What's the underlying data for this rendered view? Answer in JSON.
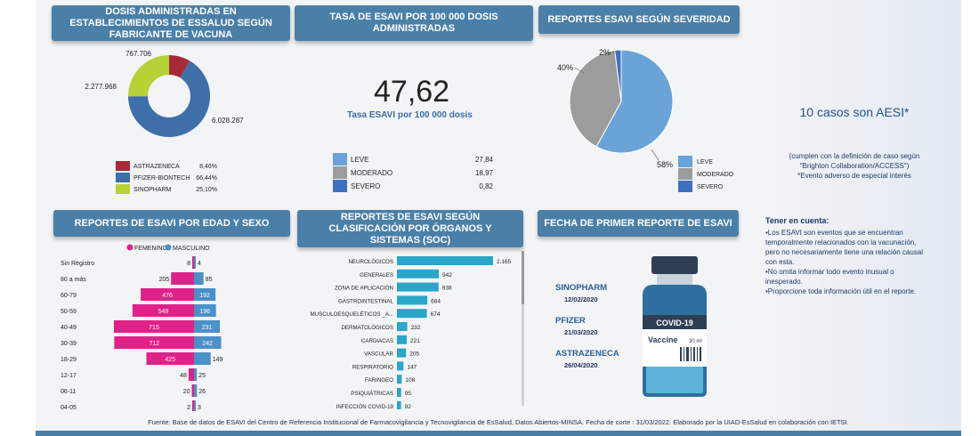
{
  "panels": {
    "fabricante": {
      "title": "DOSIS ADMINISTRADAS EN ESTABLECIMIENTOS DE ESSALUD SEGÚN FABRICANTE DE  VACUNA"
    },
    "tasa": {
      "title": "TASA DE ESAVI POR 100 000 DOSIS ADMINISTRADAS",
      "value": "47,62",
      "caption": "Tasa ESAVI por 100 000 dosis"
    },
    "severidad": {
      "title": "REPORTES ESAVI SEGÚN SEVERIDAD"
    },
    "edad_sexo": {
      "title": "REPORTES DE ESAVI POR EDAD Y SEXO"
    },
    "soc": {
      "title": "REPORTES DE ESAVI SEGÚN CLASIFICACIÓN POR ÓRGANOS Y SISTEMAS (SOC)"
    },
    "fecha": {
      "title": "FECHA DE PRIMER REPORTE DE ESAVI"
    }
  },
  "aesi": {
    "headline": "10 casos son AESI*",
    "line1": "(cumplen con la definición de caso según",
    "line2": "\"Brighton Collaboration/ACCESS\")",
    "line3": "*Evento adverso de especial interés"
  },
  "tener_cuenta": {
    "title": "Tener en cuenta:",
    "lines": [
      "•Los ESAVI son eventos que se encuentran",
      "temporalmente relacionados con la vacunación,",
      "pero no necesariamente tiene una relación causal",
      "con esta.",
      "•No omita informar todo evento inusual o",
      "inesperado.",
      "•Proporcione toda información útil en el reporte."
    ]
  },
  "fechas": [
    {
      "name": "SINOPHARM",
      "date": "12/02/2020"
    },
    {
      "name": "PFIZER",
      "date": "21/03/2020"
    },
    {
      "name": "ASTRAZENECA",
      "date": "26/04/2020"
    }
  ],
  "vial": {
    "label": "COVID-19",
    "sub": "Vaccine",
    "volume": "30 ml"
  },
  "footer": "Fuente: Base de datos de ESAVI del Centro de Referencia Institucional de Farmacovigilancia y Tecnovigilancia de EsSalud, Datos Abiertos-MINSA. Fecha de corte : 31/03/2022. Elaborado por la UIAD-EsSalud en colaboración con IETSI.",
  "colors": {
    "header": "#4a7fa8",
    "astrazeneca": "#a52a3a",
    "pfizer": "#3e6fa8",
    "sinopharm": "#b5d334",
    "leve": "#6aa3d8",
    "moderado": "#9c9c9c",
    "severo": "#3f6fbf",
    "femenino": "#e0218a",
    "masculino": "#4a90c9",
    "soc": "#2aa6c9"
  },
  "chart_data": [
    {
      "type": "pie",
      "title": "DOSIS ADMINISTRADAS EN ESTABLECIMIENTOS DE ESSALUD SEGÚN FABRICANTE DE  VACUNA",
      "slices": [
        {
          "name": "ASTRAZENECA",
          "value": 767706,
          "label": "767.706",
          "pct": "8,46%"
        },
        {
          "name": "PFIZER-BIONTECH",
          "value": 6028287,
          "label": "6.028.287",
          "pct": "66,44%"
        },
        {
          "name": "SINOPHARM",
          "value": 2277968,
          "label": "2.277.968",
          "pct": "25,10%"
        }
      ]
    },
    {
      "type": "table",
      "title": "TASA DE ESAVI POR 100 000 DOSIS ADMINISTRADAS",
      "rows": [
        {
          "name": "LEVE",
          "value": "27,84"
        },
        {
          "name": "MODERADO",
          "value": "18,97"
        },
        {
          "name": "SEVERO",
          "value": "0,82"
        }
      ]
    },
    {
      "type": "pie",
      "title": "REPORTES ESAVI SEGÚN SEVERIDAD",
      "slices": [
        {
          "name": "LEVE",
          "value": 58,
          "label": "58%"
        },
        {
          "name": "MODERADO",
          "value": 40,
          "label": "40%"
        },
        {
          "name": "SEVERO",
          "value": 2,
          "label": "2%"
        }
      ]
    },
    {
      "type": "bar",
      "title": "REPORTES DE ESAVI POR EDAD Y SEXO",
      "categories": [
        "Sin Registro",
        "80 a más",
        "60-79",
        "50-59",
        "40-49",
        "30-39",
        "18-29",
        "12-17",
        "06-11",
        "04-05"
      ],
      "series": [
        {
          "name": "FEMENINO",
          "values": [
            8,
            205,
            476,
            549,
            715,
            712,
            425,
            48,
            20,
            2
          ]
        },
        {
          "name": "MASCULINO",
          "values": [
            4,
            85,
            192,
            196,
            231,
            242,
            149,
            25,
            26,
            3
          ]
        }
      ]
    },
    {
      "type": "bar",
      "title": "REPORTES DE ESAVI SEGÚN CLASIFICACIÓN POR ÓRGANOS Y SISTEMAS (SOC)",
      "categories": [
        "NEUROLÓGICOS",
        "GENERALES",
        "ZONA DE APLICACIÓN",
        "GASTROINTESTINAL",
        "MUSCULOESQUELÉTICOS _A...",
        "DERMATOLÓGICOS",
        "CARDIACAS",
        "VASCULAR",
        "RESPIRATORIO",
        "FARINGEO",
        "PSIQUIÁTRICAS",
        "INFECCIÓN COVID-19"
      ],
      "values": [
        2165,
        942,
        938,
        684,
        674,
        232,
        221,
        205,
        147,
        108,
        95,
        92
      ],
      "labels": [
        "2.165",
        "942",
        "938",
        "684",
        "674",
        "232",
        "221",
        "205",
        "147",
        "108",
        "95",
        "92"
      ]
    }
  ]
}
